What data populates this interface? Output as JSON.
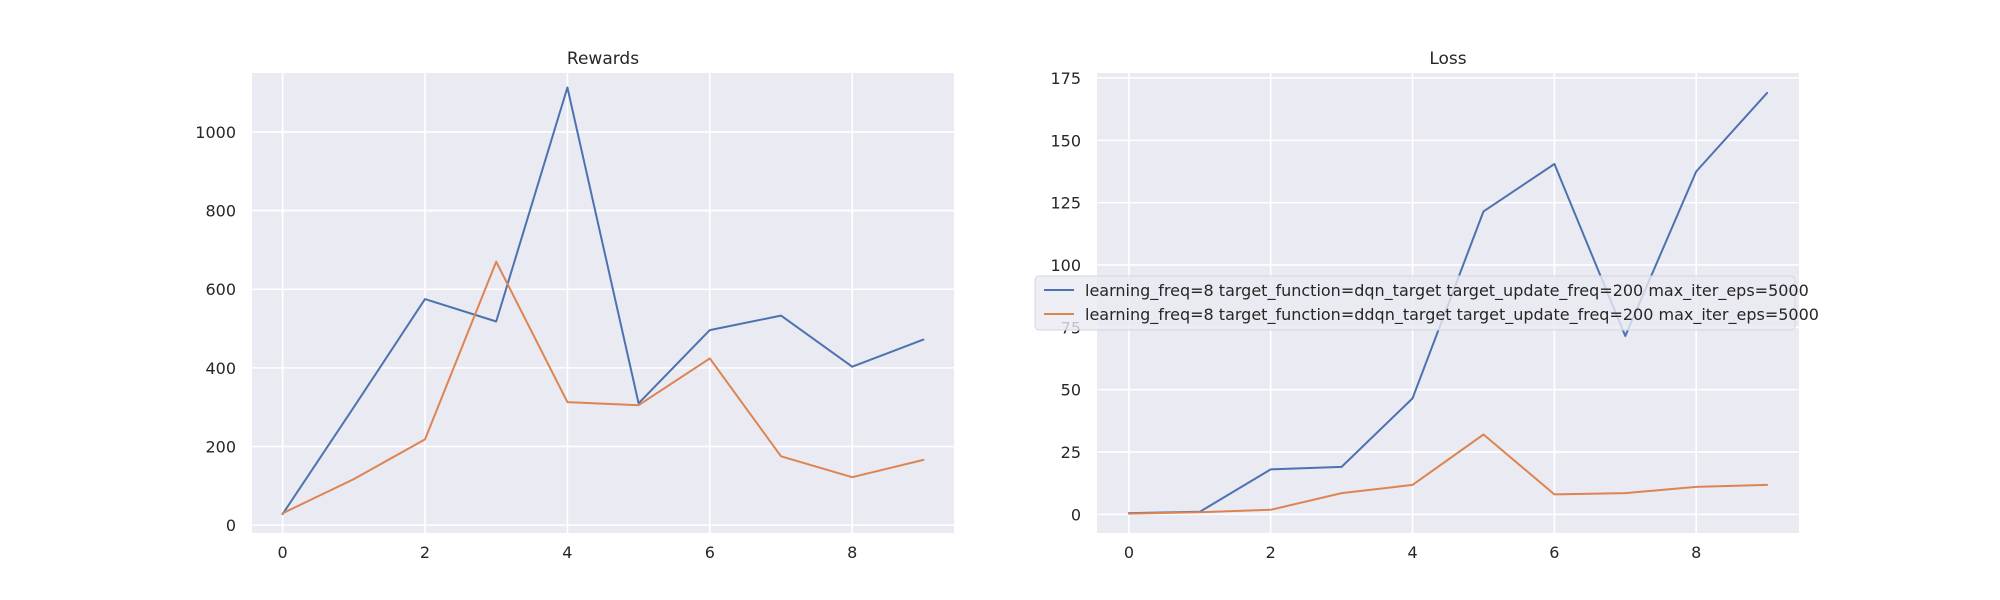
{
  "chart_data": [
    {
      "type": "line",
      "title": "Rewards",
      "xlabel": "",
      "ylabel": "",
      "x": [
        0,
        1,
        2,
        3,
        4,
        5,
        6,
        7,
        8,
        9
      ],
      "xlim": [
        -0.43,
        9.43
      ],
      "ylim": [
        -20,
        1150
      ],
      "xticks": [
        0,
        2,
        4,
        6,
        8
      ],
      "yticks": [
        0,
        200,
        400,
        600,
        800,
        1000
      ],
      "grid": true,
      "series": [
        {
          "name": "learning_freq=8 target_function=dqn_target target_update_freq=200 max_iter_eps=5000",
          "color": "#4c72b0",
          "values": [
            28,
            300,
            575,
            518,
            1113,
            310,
            496,
            533,
            403,
            472
          ]
        },
        {
          "name": "learning_freq=8 target_function=ddqn_target target_update_freq=200 max_iter_eps=5000",
          "color": "#dd8452",
          "values": [
            30,
            117,
            218,
            670,
            313,
            305,
            424,
            175,
            122,
            166
          ]
        }
      ]
    },
    {
      "type": "line",
      "title": "Loss",
      "xlabel": "",
      "ylabel": "",
      "x": [
        0,
        1,
        2,
        3,
        4,
        5,
        6,
        7,
        8,
        9
      ],
      "xlim": [
        -0.45,
        9.45
      ],
      "ylim": [
        -7.5,
        177
      ],
      "xticks": [
        0,
        2,
        4,
        6,
        8
      ],
      "yticks": [
        0,
        25,
        50,
        75,
        100,
        125,
        150,
        175
      ],
      "grid": true,
      "legend": "center",
      "series": [
        {
          "name": "learning_freq=8 target_function=dqn_target target_update_freq=200 max_iter_eps=5000",
          "color": "#4c72b0",
          "values": [
            0.5,
            1.0,
            18,
            19,
            46.5,
            121.5,
            140.5,
            71.5,
            137.5,
            169
          ]
        },
        {
          "name": "learning_freq=8 target_function=ddqn_target target_update_freq=200 max_iter_eps=5000",
          "color": "#dd8452",
          "values": [
            0.3,
            0.8,
            1.8,
            8.5,
            11.8,
            32,
            8,
            8.5,
            11,
            11.8
          ]
        }
      ]
    }
  ]
}
